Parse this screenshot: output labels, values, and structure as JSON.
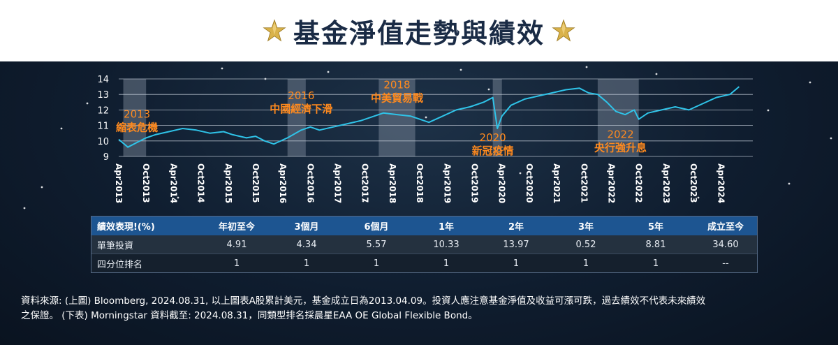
{
  "header": {
    "title": "基金淨值走勢與績效",
    "star_color": "#d9b24a"
  },
  "chart_data": {
    "type": "line",
    "ylim": [
      9,
      14
    ],
    "y_ticks": [
      9,
      10,
      11,
      12,
      13,
      14
    ],
    "grid": true,
    "line_color": "#2fc3e8",
    "x_tick_labels": [
      "Apr2013",
      "Oct2013",
      "Apr2014",
      "Oct2014",
      "Apr2015",
      "Oct2015",
      "Apr2016",
      "Oct2016",
      "Apr2017",
      "Oct2017",
      "Apr2018",
      "Oct2018",
      "Apr2019",
      "Oct2019",
      "Apr2020",
      "Oct2020",
      "Apr2021",
      "Oct2021",
      "Apr2022",
      "Oct2022",
      "Apr2023",
      "Oct2023",
      "Apr2024"
    ],
    "series": [
      {
        "x": [
          "2013-04",
          "2013-06",
          "2013-08",
          "2013-10",
          "2013-12",
          "2014-03",
          "2014-06",
          "2014-09",
          "2014-12",
          "2015-03",
          "2015-05",
          "2015-08",
          "2015-10",
          "2015-12",
          "2016-02",
          "2016-05",
          "2016-08",
          "2016-10",
          "2016-12",
          "2017-03",
          "2017-06",
          "2017-09",
          "2017-12",
          "2018-02",
          "2018-05",
          "2018-08",
          "2018-10",
          "2018-12",
          "2019-03",
          "2019-06",
          "2019-09",
          "2019-12",
          "2020-02",
          "2020-03",
          "2020-04",
          "2020-06",
          "2020-09",
          "2020-12",
          "2021-03",
          "2021-06",
          "2021-09",
          "2021-11",
          "2022-01",
          "2022-03",
          "2022-05",
          "2022-07",
          "2022-09",
          "2022-10",
          "2022-12",
          "2023-03",
          "2023-06",
          "2023-09",
          "2023-12",
          "2024-03",
          "2024-06",
          "2024-08"
        ],
        "y": [
          10.1,
          9.6,
          9.9,
          10.2,
          10.4,
          10.6,
          10.8,
          10.7,
          10.5,
          10.6,
          10.4,
          10.2,
          10.3,
          10.0,
          9.8,
          10.2,
          10.7,
          10.9,
          10.7,
          10.9,
          11.1,
          11.3,
          11.6,
          11.8,
          11.7,
          11.6,
          11.4,
          11.2,
          11.6,
          12.0,
          12.2,
          12.5,
          12.8,
          10.8,
          11.6,
          12.3,
          12.7,
          12.9,
          13.1,
          13.3,
          13.4,
          13.1,
          13.0,
          12.5,
          11.9,
          11.7,
          12.0,
          11.4,
          11.8,
          12.0,
          12.2,
          12.0,
          12.4,
          12.8,
          13.0,
          13.5
        ]
      }
    ],
    "shaded_periods": [
      {
        "start": "2013-05",
        "end": "2013-10"
      },
      {
        "start": "2016-05",
        "end": "2016-09"
      },
      {
        "start": "2018-01",
        "end": "2018-09"
      },
      {
        "start": "2020-02",
        "end": "2020-04"
      },
      {
        "start": "2022-01",
        "end": "2022-10"
      }
    ],
    "annotations": [
      {
        "year": "2013",
        "text": "縮表危機",
        "x": "2013-08",
        "y": 11.5
      },
      {
        "year": "2016",
        "text": "中國經濟下滑",
        "x": "2016-08",
        "y": 12.7
      },
      {
        "year": "2018",
        "text": "中美貿易戰",
        "x": "2018-05",
        "y": 13.4
      },
      {
        "year": "2020",
        "text": "新冠疫情",
        "x": "2020-02",
        "y": 10.0
      },
      {
        "year": "2022",
        "text": "央行強升息",
        "x": "2022-06",
        "y": 10.2
      }
    ],
    "annotation_color": "#ff8a1e"
  },
  "performance_table": {
    "headers": [
      "績效表現!(%)",
      "年初至今",
      "3個月",
      "6個月",
      "1年",
      "2年",
      "3年",
      "5年",
      "成立至今"
    ],
    "rows": [
      {
        "label": "單筆投資",
        "values": [
          "4.91",
          "4.34",
          "5.57",
          "10.33",
          "13.97",
          "0.52",
          "8.81",
          "34.60"
        ]
      },
      {
        "label": "四分位排名",
        "values": [
          "1",
          "1",
          "1",
          "1",
          "1",
          "1",
          "1",
          "--"
        ]
      }
    ],
    "header_color": "#1d5591"
  },
  "source_note": {
    "line1": "資料來源: (上圖) Bloomberg, 2024.08.31, 以上圖表A股累計美元，基金成立日為2013.04.09。投資人應注意基金淨值及收益可漲可跌，過去績效不代表未來績效",
    "line2": "之保證。 (下表) Morningstar 資料截至: 2024.08.31，同類型排名採晨星EAA OE Global Flexible Bond。"
  }
}
